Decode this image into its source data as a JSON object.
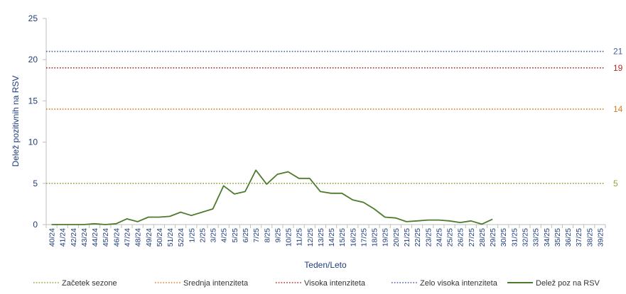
{
  "chart_data": {
    "type": "line",
    "xlabel": "Teden/Leto",
    "ylabel": "Delež pozitivnih na RSV",
    "ylim": [
      0,
      25
    ],
    "yticks": [
      "0",
      "5",
      "10",
      "15",
      "20",
      "25"
    ],
    "grid": false,
    "legend_position": "bottom",
    "categories": [
      "40/24",
      "41/24",
      "42/24",
      "43/24",
      "44/24",
      "45/24",
      "46/24",
      "47/24",
      "48/24",
      "49/24",
      "50/24",
      "51/24",
      "52/24",
      "1/25",
      "2/25",
      "3/25",
      "4/25",
      "5/25",
      "6/25",
      "7/25",
      "8/25",
      "9/25",
      "10/25",
      "11/25",
      "12/25",
      "13/25",
      "14/25",
      "15/25",
      "16/25",
      "17/25",
      "18/25",
      "19/25",
      "20/25",
      "21/25",
      "22/25",
      "23/25",
      "24/25",
      "25/25",
      "26/25",
      "27/25",
      "28/25",
      "29/25",
      "30/25",
      "31/25",
      "32/25",
      "33/25",
      "34/25",
      "35/25",
      "36/25",
      "37/25",
      "38/25",
      "39/25"
    ],
    "thresholds": [
      {
        "name": "Začetek sezone",
        "value": 5,
        "label": "5",
        "color": "#8ba63a"
      },
      {
        "name": "Srednja intenziteta",
        "value": 14,
        "label": "14",
        "color": "#e07b21"
      },
      {
        "name": "Visoka intenziteta",
        "value": 19,
        "label": "19",
        "color": "#b22b2b"
      },
      {
        "name": "Zelo visoka intenziteta",
        "value": 21,
        "label": "21",
        "color": "#4a5a9c"
      }
    ],
    "series": [
      {
        "name": "Delež poz na RSV",
        "color": "#4e7a2e",
        "values": [
          0,
          0,
          0,
          0,
          0.1,
          0,
          0.1,
          0.7,
          0.35,
          0.9,
          0.9,
          1.0,
          1.5,
          1.1,
          1.5,
          1.9,
          4.7,
          3.7,
          4.0,
          6.6,
          4.9,
          6.1,
          6.4,
          5.6,
          5.6,
          4.0,
          3.8,
          3.8,
          3.0,
          2.7,
          1.9,
          0.9,
          0.8,
          0.35,
          0.45,
          0.55,
          0.55,
          0.45,
          0.25,
          0.45,
          0.05,
          0.65,
          null,
          null,
          null,
          null,
          null,
          null,
          null,
          null,
          null,
          null
        ]
      }
    ]
  }
}
